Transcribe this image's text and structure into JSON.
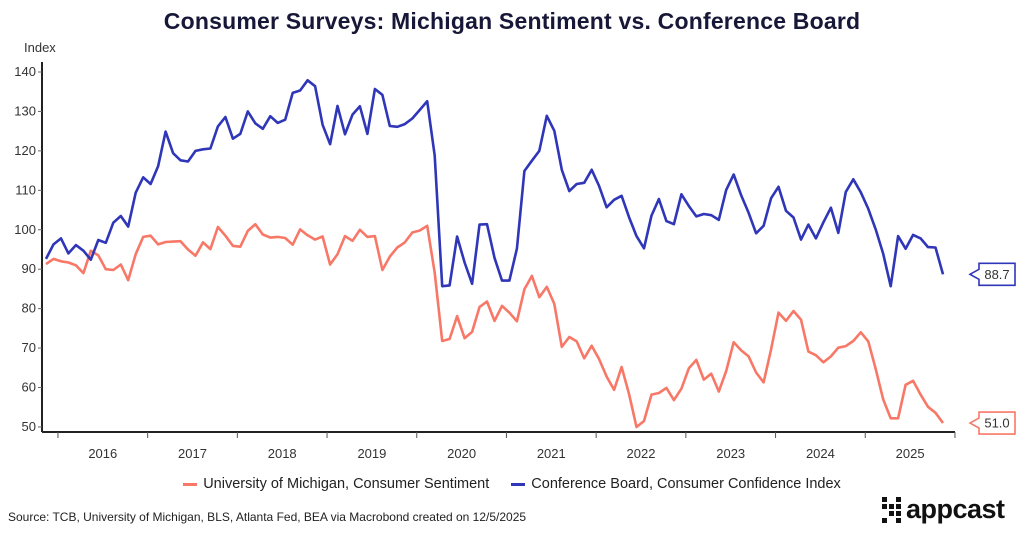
{
  "chart_data": {
    "type": "line",
    "title": "Consumer Surveys: Michigan Sentiment vs. Conference Board",
    "ylabel": "Index",
    "xlabel": "",
    "ylim": [
      48,
      142
    ],
    "yticks": [
      50,
      60,
      70,
      80,
      90,
      100,
      110,
      120,
      130,
      140
    ],
    "xticks": [
      "2016",
      "2017",
      "2018",
      "2019",
      "2020",
      "2021",
      "2022",
      "2023",
      "2024",
      "2025"
    ],
    "start": "2015-11",
    "end": "2025-11",
    "frequency": "monthly",
    "grid": false,
    "legend": "bottom",
    "series": [
      {
        "name": "University of Michigan, Consumer Sentiment",
        "color": "#f87868",
        "last_label": "51.0",
        "values": [
          91.3,
          92.6,
          92.0,
          91.7,
          91.0,
          89.0,
          94.7,
          93.5,
          90.0,
          89.8,
          91.2,
          87.2,
          93.8,
          98.2,
          98.5,
          96.3,
          96.9,
          97.0,
          97.1,
          95.0,
          93.4,
          96.8,
          95.1,
          100.7,
          98.5,
          95.9,
          95.7,
          99.7,
          101.4,
          98.8,
          98.0,
          98.2,
          97.9,
          96.2,
          100.1,
          98.6,
          97.5,
          98.3,
          91.2,
          93.8,
          98.4,
          97.2,
          100.0,
          98.2,
          98.4,
          89.8,
          93.2,
          95.5,
          96.8,
          99.3,
          99.8,
          101.0,
          89.1,
          71.8,
          72.3,
          78.1,
          72.5,
          74.1,
          80.4,
          81.8,
          76.9,
          80.7,
          79.0,
          76.8,
          84.9,
          88.3,
          82.9,
          85.5,
          81.2,
          70.3,
          72.8,
          71.7,
          67.4,
          70.6,
          67.2,
          62.8,
          59.4,
          65.2,
          58.4,
          50.0,
          51.5,
          58.2,
          58.6,
          59.9,
          56.8,
          59.7,
          64.9,
          67.0,
          62.0,
          63.5,
          59.0,
          64.2,
          71.5,
          69.4,
          67.9,
          63.8,
          61.3,
          69.7,
          79.0,
          76.9,
          79.4,
          77.2,
          69.1,
          68.2,
          66.4,
          67.9,
          70.1,
          70.5,
          71.8,
          74.0,
          71.7,
          64.7,
          57.0,
          52.2,
          52.2,
          60.7,
          61.7,
          58.2,
          55.1,
          53.6,
          51.0
        ]
      },
      {
        "name": "Conference Board, Consumer Confidence Index",
        "color": "#2f36b8",
        "last_label": "88.7",
        "values": [
          92.6,
          96.3,
          97.8,
          94.0,
          96.1,
          94.7,
          92.4,
          97.4,
          96.7,
          101.8,
          103.5,
          100.8,
          109.4,
          113.3,
          111.6,
          116.1,
          124.9,
          119.4,
          117.6,
          117.3,
          120.0,
          120.4,
          120.6,
          126.2,
          128.6,
          123.1,
          124.3,
          130.0,
          127.0,
          125.6,
          128.8,
          127.1,
          127.9,
          134.7,
          135.3,
          137.9,
          136.4,
          126.6,
          121.7,
          131.4,
          124.2,
          129.2,
          131.3,
          124.3,
          135.7,
          134.2,
          126.3,
          126.1,
          126.8,
          128.2,
          130.4,
          132.6,
          118.8,
          85.7,
          85.9,
          98.3,
          91.7,
          86.3,
          101.3,
          101.4,
          92.9,
          87.1,
          87.1,
          95.2,
          114.9,
          117.5,
          120.0,
          128.9,
          125.1,
          115.2,
          109.8,
          111.6,
          111.9,
          115.2,
          111.1,
          105.7,
          107.6,
          108.6,
          103.2,
          98.4,
          95.3,
          103.6,
          107.8,
          102.2,
          101.4,
          109.0,
          106.0,
          103.4,
          104.0,
          103.7,
          102.5,
          110.1,
          114.0,
          108.7,
          104.3,
          99.1,
          101.0,
          108.0,
          110.9,
          104.8,
          103.1,
          97.5,
          101.3,
          97.8,
          101.9,
          105.6,
          99.2,
          109.6,
          112.8,
          109.5,
          105.3,
          100.1,
          93.9,
          85.7,
          98.4,
          95.2,
          98.7,
          97.8,
          95.6,
          95.5,
          88.7
        ]
      }
    ]
  },
  "source": "Source: TCB, University of Michigan, BLS, Atlanta Fed, BEA via Macrobond created on 12/5/2025",
  "logo": "appcast"
}
